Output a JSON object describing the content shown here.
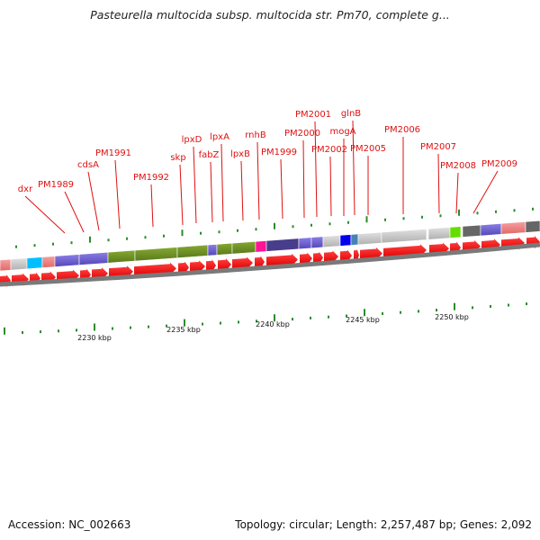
{
  "title": "Pasteurella multocida subsp. multocida str. Pm70, complete g...",
  "footer": {
    "accession_label": "Accession:",
    "accession": "NC_002663",
    "topology_label": "Topology:",
    "topology": "circular",
    "length_label": "Length:",
    "length": "2,257,487 bp",
    "genes_label": "Genes:",
    "genes": "2,092"
  },
  "axis_labels": [
    "2230 kbp",
    "2235 kbp",
    "2240 kbp",
    "2245 kbp",
    "2250 kbp"
  ],
  "gene_labels": [
    "dxr",
    "PM1989",
    "cdsA",
    "PM1991",
    "PM1992",
    "skp",
    "lpxD",
    "fabZ",
    "lpxA",
    "lpxB",
    "rnhB",
    "PM1999",
    "PM2000",
    "PM2001",
    "PM2002",
    "mogA",
    "glnB",
    "PM2005",
    "PM2006",
    "PM2007",
    "PM2008",
    "PM2009"
  ],
  "colors": {
    "label": "#e01010",
    "arrow": "#ff0000",
    "tick": "#2e8b2e",
    "purple": "#6a5acd",
    "olive": "#6b8e23",
    "pink": "#f08080",
    "magenta": "#ff1493",
    "darkslate": "#483d8b",
    "blue": "#0000ee",
    "steel": "#4682b4",
    "gray": "#c8c8c8",
    "lime": "#66dd00",
    "darkgray": "#666666",
    "cyan": "#00bfff",
    "backbone": "#808080"
  }
}
